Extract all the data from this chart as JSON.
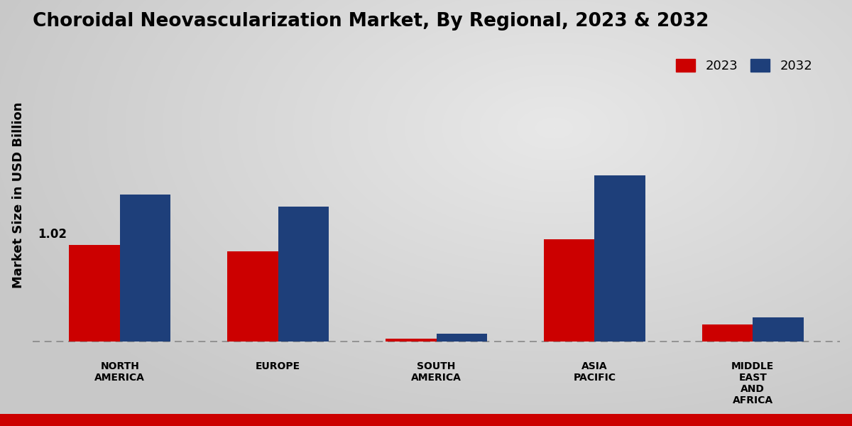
{
  "title": "Choroidal Neovascularization Market, By Regional, 2023 & 2032",
  "ylabel": "Market Size in USD Billion",
  "categories": [
    "NORTH\nAMERICA",
    "EUROPE",
    "SOUTH\nAMERICA",
    "ASIA\nPACIFIC",
    "MIDDLE\nEAST\nAND\nAFRICA"
  ],
  "values_2023": [
    1.02,
    0.95,
    0.03,
    1.08,
    0.18
  ],
  "values_2032": [
    1.55,
    1.42,
    0.08,
    1.75,
    0.25
  ],
  "color_2023": "#cc0000",
  "color_2032": "#1e3f7a",
  "annotation_label": "1.02",
  "annotation_region": 0,
  "bar_width": 0.32,
  "bg_light": "#e8e8e8",
  "bg_dark": "#c8c8c8",
  "title_fontsize": 19,
  "axis_label_fontsize": 13,
  "tick_fontsize": 10,
  "legend_fontsize": 13,
  "ylim_min": -0.12,
  "ylim_max": 3.2,
  "dashed_line_y": 0.0,
  "bottom_bar_color": "#cc0000",
  "bottom_bar_height": 18
}
